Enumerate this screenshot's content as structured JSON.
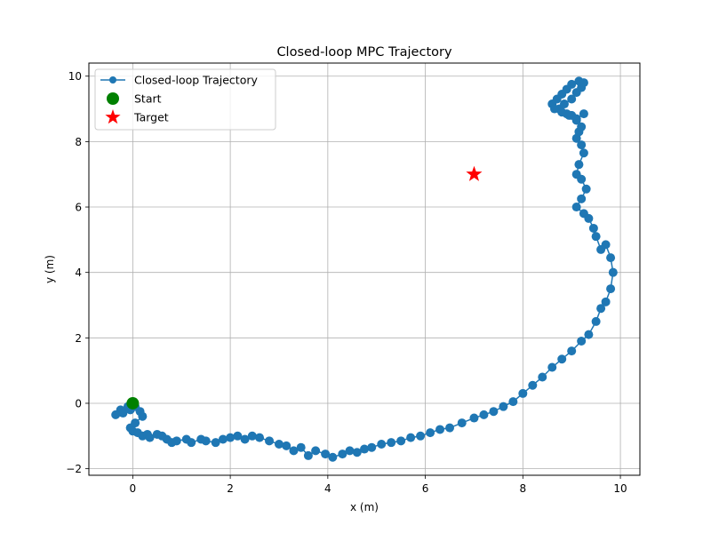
{
  "chart_data": {
    "type": "scatter",
    "title": "Closed-loop MPC Trajectory",
    "xlabel": "x (m)",
    "ylabel": "y (m)",
    "xlim": [
      -0.9,
      10.4
    ],
    "ylim": [
      -2.2,
      10.4
    ],
    "xticks": [
      0,
      2,
      4,
      6,
      8,
      10
    ],
    "yticks": [
      -2,
      0,
      2,
      4,
      6,
      8,
      10
    ],
    "xtick_labels": [
      "0",
      "2",
      "4",
      "6",
      "8",
      "10"
    ],
    "ytick_labels": [
      "−2",
      "0",
      "2",
      "4",
      "6",
      "8",
      "10"
    ],
    "grid": true,
    "legend_position": "top-left",
    "series": [
      {
        "name": "Closed-loop Trajectory",
        "kind": "line-with-markers",
        "color": "#1f77b4",
        "x": [
          0.0,
          -0.1,
          -0.25,
          -0.35,
          -0.2,
          -0.05,
          0.05,
          0.15,
          0.2,
          0.05,
          -0.05,
          0.0,
          0.1,
          0.2,
          0.3,
          0.35,
          0.5,
          0.6,
          0.7,
          0.8,
          0.9,
          1.1,
          1.2,
          1.4,
          1.5,
          1.7,
          1.85,
          2.0,
          2.15,
          2.3,
          2.45,
          2.6,
          2.8,
          3.0,
          3.15,
          3.3,
          3.45,
          3.6,
          3.75,
          3.95,
          4.1,
          4.3,
          4.45,
          4.6,
          4.75,
          4.9,
          5.1,
          5.3,
          5.5,
          5.7,
          5.9,
          6.1,
          6.3,
          6.5,
          6.75,
          7.0,
          7.2,
          7.4,
          7.6,
          7.8,
          8.0,
          8.2,
          8.4,
          8.6,
          8.8,
          9.0,
          9.2,
          9.35,
          9.5,
          9.6,
          9.7,
          9.8,
          9.85,
          9.8,
          9.7,
          9.6,
          9.5,
          9.45,
          9.35,
          9.25,
          9.1,
          9.2,
          9.3,
          9.2,
          9.1,
          9.15,
          9.25,
          9.2,
          9.1,
          9.15,
          9.2,
          9.1,
          9.0,
          8.9,
          8.75,
          8.85,
          9.0,
          9.1,
          9.2,
          9.25,
          9.15,
          9.0,
          8.9,
          8.8,
          8.7,
          8.6,
          8.65,
          8.8,
          8.95,
          9.1,
          9.25
        ],
        "y": [
          0.0,
          -0.1,
          -0.2,
          -0.35,
          -0.3,
          -0.2,
          -0.1,
          -0.25,
          -0.4,
          -0.6,
          -0.75,
          -0.85,
          -0.9,
          -1.0,
          -0.95,
          -1.05,
          -0.95,
          -1.0,
          -1.1,
          -1.2,
          -1.15,
          -1.1,
          -1.2,
          -1.1,
          -1.15,
          -1.2,
          -1.1,
          -1.05,
          -1.0,
          -1.1,
          -1.0,
          -1.05,
          -1.15,
          -1.25,
          -1.3,
          -1.45,
          -1.35,
          -1.6,
          -1.45,
          -1.55,
          -1.65,
          -1.55,
          -1.45,
          -1.5,
          -1.4,
          -1.35,
          -1.25,
          -1.2,
          -1.15,
          -1.05,
          -1.0,
          -0.9,
          -0.8,
          -0.75,
          -0.6,
          -0.45,
          -0.35,
          -0.25,
          -0.1,
          0.05,
          0.3,
          0.55,
          0.8,
          1.1,
          1.35,
          1.6,
          1.9,
          2.1,
          2.5,
          2.9,
          3.1,
          3.5,
          4.0,
          4.45,
          4.85,
          4.7,
          5.1,
          5.35,
          5.65,
          5.8,
          6.0,
          6.25,
          6.55,
          6.85,
          7.0,
          7.3,
          7.65,
          7.9,
          8.1,
          8.3,
          8.45,
          8.65,
          8.8,
          8.85,
          9.0,
          9.15,
          9.3,
          9.5,
          9.65,
          9.8,
          9.85,
          9.75,
          9.6,
          9.45,
          9.3,
          9.15,
          9.0,
          8.9,
          8.8,
          8.7,
          8.85
        ]
      },
      {
        "name": "Start",
        "kind": "marker-circle",
        "color": "#008000",
        "x": [
          0.0
        ],
        "y": [
          0.0
        ]
      },
      {
        "name": "Target",
        "kind": "marker-star",
        "color": "#ff0000",
        "x": [
          7.0
        ],
        "y": [
          7.0
        ]
      }
    ]
  }
}
